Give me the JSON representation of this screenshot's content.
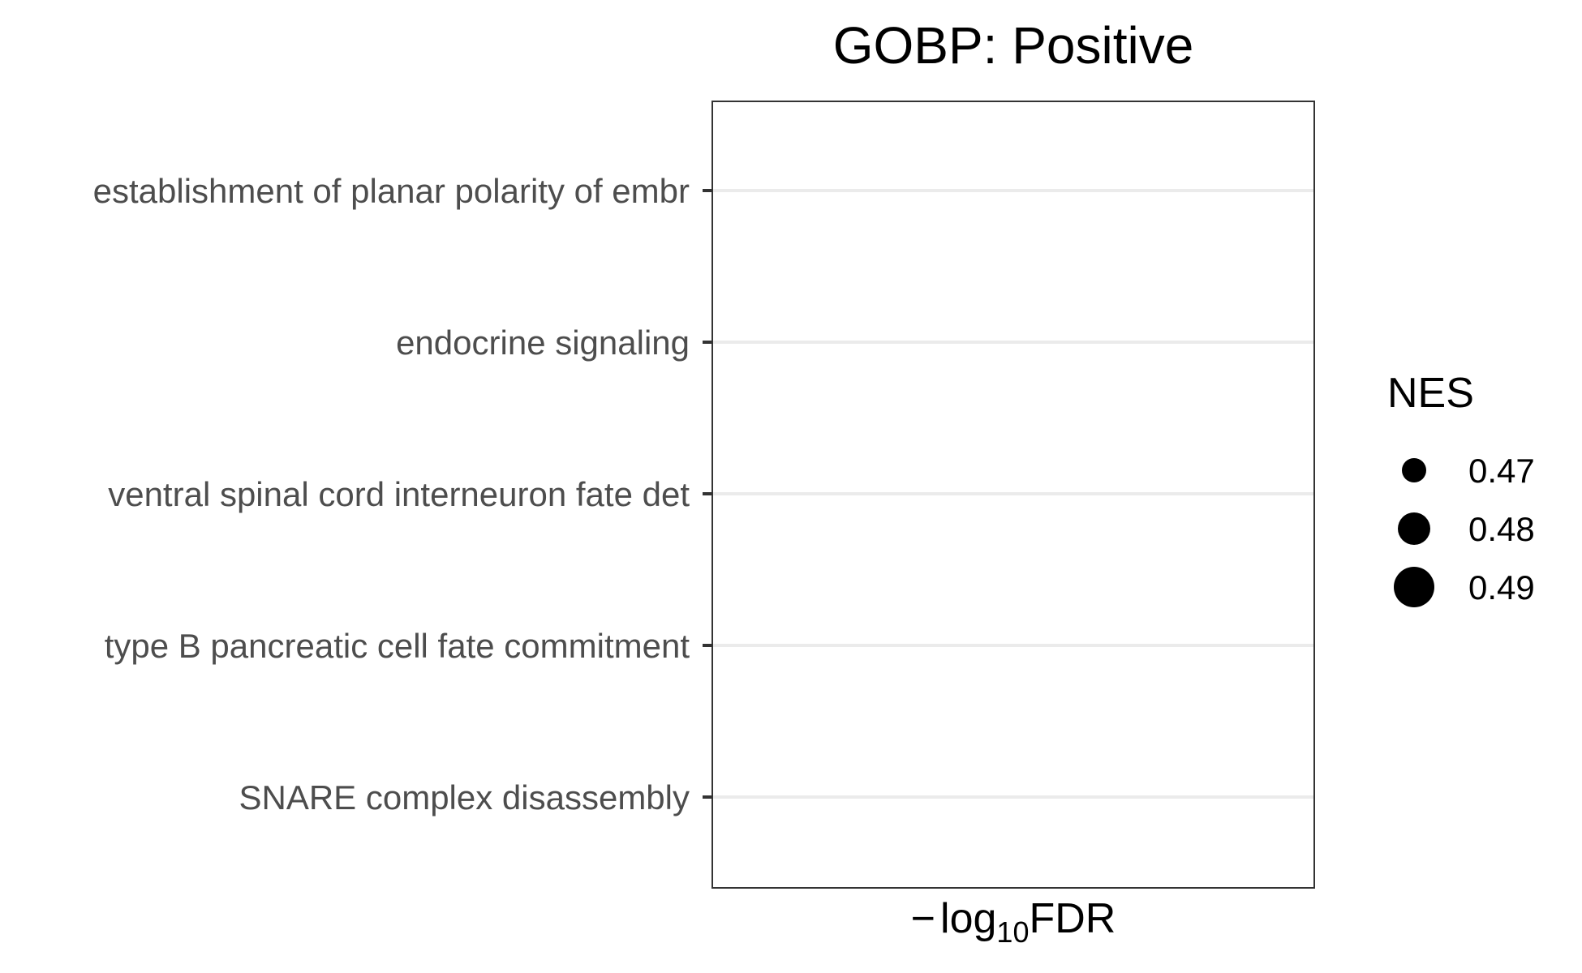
{
  "chart_data": {
    "type": "scatter",
    "title": "GOBP: Positive",
    "xlabel": {
      "prefix": "−",
      "base": "log",
      "subscript": "10",
      "suffix": "FDR"
    },
    "ylabel": "",
    "categories": [
      "establishment of planar polarity of embr",
      "endocrine signaling",
      "ventral spinal cord interneuron fate det",
      "type B pancreatic cell fate commitment",
      "SNARE complex disassembly"
    ],
    "points": [],
    "grid": {
      "horizontal_major": true,
      "vertical": false
    },
    "legend": {
      "title": "NES",
      "position": "right",
      "items": [
        {
          "label": "0.47",
          "value": 0.47
        },
        {
          "label": "0.48",
          "value": 0.48
        },
        {
          "label": "0.49",
          "value": 0.49
        }
      ]
    },
    "colors": {
      "point": "#000000",
      "panel_border": "#333333",
      "gridline": "#ebebeb",
      "tick": "#333333",
      "tick_label": "#4d4d4d"
    }
  }
}
